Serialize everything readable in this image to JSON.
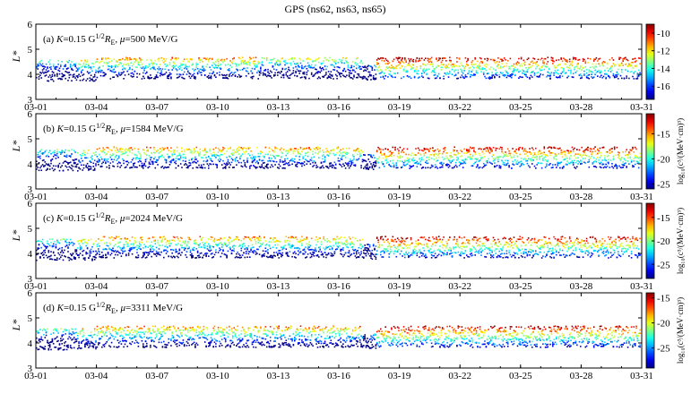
{
  "chart_data": {
    "type": "scatter",
    "title": "GPS (ns62, ns63, ns65)",
    "ylabel": "L*",
    "xticks": [
      "03-01",
      "03-04",
      "03-07",
      "03-10",
      "03-13",
      "03-16",
      "03-19",
      "03-22",
      "03-25",
      "03-28",
      "03-31"
    ],
    "x_days_range": [
      1,
      31
    ],
    "ylim": [
      3,
      6
    ],
    "yticks": [
      3,
      4,
      5,
      6
    ],
    "colormap": "jet",
    "panels": [
      {
        "label_prefix": "(a) ",
        "K": "0.15",
        "K_unit": "G¹ᐟ²R",
        "mu": "500",
        "mu_unit": "MeV/G",
        "colorbar_ticks": [
          "-10",
          "-12",
          "-14",
          "-16"
        ],
        "clim": [
          -17.5,
          -9
        ],
        "colorbar_label": ""
      },
      {
        "label_prefix": "(b) ",
        "K": "0.15",
        "K_unit": "G¹ᐟ²R",
        "mu": "1584",
        "mu_unit": "MeV/G",
        "colorbar_ticks": [
          "-15",
          "-20",
          "-25"
        ],
        "clim": [
          -26,
          -11
        ],
        "colorbar_label": "log₁₀(c³/(MeV·cm)³)"
      },
      {
        "label_prefix": "(c) ",
        "K": "0.15",
        "K_unit": "G¹ᐟ²R",
        "mu": "2024",
        "mu_unit": "MeV/G",
        "colorbar_ticks": [
          "-15",
          "-20",
          "-25"
        ],
        "clim": [
          -28,
          -12
        ],
        "colorbar_label": "log₁₀(c³/(MeV·cm)³)"
      },
      {
        "label_prefix": "(d) ",
        "K": "0.15",
        "K_unit": "G¹ᐟ²R",
        "mu": "3311",
        "mu_unit": "MeV/G",
        "colorbar_ticks": [
          "-15",
          "-20",
          "-25"
        ],
        "clim": [
          -29,
          -14
        ],
        "colorbar_label": "log₁₀(c³/(MeV·cm)³)"
      }
    ],
    "data_description_structure": {
      "L_band_range": [
        3.8,
        4.75
      ],
      "dropout_day": 17.5
    }
  }
}
